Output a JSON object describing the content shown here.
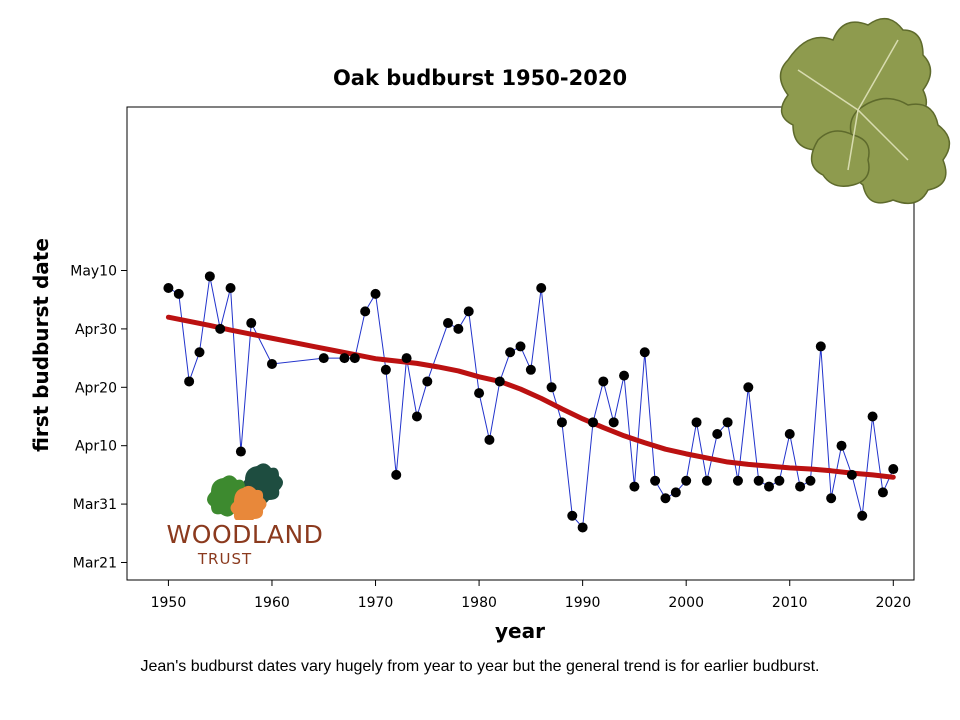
{
  "logo": {
    "name": "WOODLAND",
    "sub": "TRUST"
  },
  "caption": "Jean's budburst dates vary hugely from year to year but the general trend is for earlier budburst.",
  "colors": {
    "data_line": "#2233cc",
    "marker": "#000000",
    "trend": "#bb1111",
    "logo_text": "#8b3a1e",
    "logo_leaf_green": "#3d8a2f",
    "logo_leaf_dark": "#1e4d40",
    "leaf_photo": "#8e9b4e"
  },
  "icons": {
    "logo": "oak-leaves-icon",
    "photo": "oak-leaves-photo"
  },
  "chart_data": {
    "type": "line",
    "title": "Oak budburst 1950-2020",
    "xlabel": "year",
    "ylabel": "first budburst date",
    "xlim": [
      1946,
      2022
    ],
    "ylim": [
      -3,
      78
    ],
    "x_ticks": [
      {
        "value": 1950,
        "label": "1950"
      },
      {
        "value": 1960,
        "label": "1960"
      },
      {
        "value": 1970,
        "label": "1970"
      },
      {
        "value": 1980,
        "label": "1980"
      },
      {
        "value": 1990,
        "label": "1990"
      },
      {
        "value": 2000,
        "label": "2000"
      },
      {
        "value": 2010,
        "label": "2010"
      },
      {
        "value": 2020,
        "label": "2020"
      }
    ],
    "y_ticks": [
      {
        "value": 0,
        "label": "Mar21"
      },
      {
        "value": 10,
        "label": "Mar31"
      },
      {
        "value": 20,
        "label": "Apr10"
      },
      {
        "value": 30,
        "label": "Apr20"
      },
      {
        "value": 40,
        "label": "Apr30"
      },
      {
        "value": 50,
        "label": "May10"
      }
    ],
    "y_units": "days after Mar 21",
    "grid": false,
    "legend": "none",
    "series": [
      {
        "type": "line+markers",
        "x": [
          1950,
          1951,
          1952,
          1953,
          1954,
          1955,
          1956,
          1957,
          1958,
          1960,
          1965,
          1967,
          1968,
          1969,
          1970,
          1971,
          1972,
          1973,
          1974,
          1975,
          1977,
          1978,
          1979,
          1980,
          1981,
          1982,
          1983,
          1984,
          1985,
          1986,
          1987,
          1988,
          1989,
          1990,
          1991,
          1992,
          1993,
          1994,
          1995,
          1996,
          1997,
          1998,
          1999,
          2000,
          2001,
          2002,
          2003,
          2004,
          2005,
          2006,
          2007,
          2008,
          2009,
          2010,
          2011,
          2012,
          2013,
          2014,
          2015,
          2016,
          2017,
          2018,
          2019,
          2020
        ],
        "y": [
          47,
          46,
          31,
          36,
          49,
          40,
          47,
          19,
          41,
          34,
          35,
          35,
          35,
          43,
          46,
          33,
          15,
          35,
          25,
          31,
          41,
          40,
          43,
          29,
          21,
          31,
          36,
          37,
          33,
          47,
          30,
          24,
          8,
          6,
          24,
          31,
          24,
          32,
          13,
          36,
          14,
          11,
          12,
          14,
          24,
          14,
          22,
          24,
          14,
          30,
          14,
          13,
          14,
          22,
          13,
          14,
          37,
          11,
          20,
          15,
          8,
          25,
          12,
          16
        ]
      },
      {
        "type": "trend",
        "x": [
          1950,
          1952,
          1954,
          1956,
          1958,
          1960,
          1962,
          1964,
          1966,
          1968,
          1970,
          1972,
          1974,
          1976,
          1978,
          1980,
          1982,
          1984,
          1986,
          1988,
          1990,
          1992,
          1994,
          1996,
          1998,
          2000,
          2002,
          2004,
          2006,
          2008,
          2010,
          2012,
          2014,
          2016,
          2018,
          2020
        ],
        "y": [
          42,
          41.3,
          40.6,
          39.8,
          39.1,
          38.4,
          37.7,
          37,
          36.3,
          35.6,
          34.9,
          34.5,
          34.1,
          33.5,
          32.8,
          31.8,
          31,
          29.7,
          28.1,
          26.3,
          24.6,
          23.1,
          21.7,
          20.5,
          19.4,
          18.6,
          17.9,
          17.2,
          16.8,
          16.5,
          16.2,
          16,
          15.7,
          15.3,
          15,
          14.6
        ]
      }
    ]
  }
}
